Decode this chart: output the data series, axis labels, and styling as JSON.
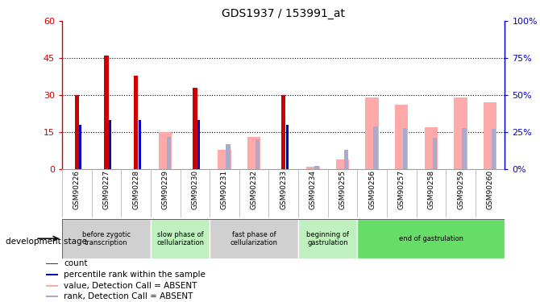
{
  "title": "GDS1937 / 153991_at",
  "samples": [
    "GSM90226",
    "GSM90227",
    "GSM90228",
    "GSM90229",
    "GSM90230",
    "GSM90231",
    "GSM90232",
    "GSM90233",
    "GSM90234",
    "GSM90255",
    "GSM90256",
    "GSM90257",
    "GSM90258",
    "GSM90259",
    "GSM90260"
  ],
  "count_values": [
    30,
    46,
    38,
    null,
    33,
    null,
    null,
    30,
    null,
    null,
    null,
    null,
    null,
    null,
    null
  ],
  "rank_values": [
    30,
    33,
    33,
    null,
    33,
    null,
    null,
    30,
    null,
    null,
    null,
    null,
    null,
    null,
    null
  ],
  "absent_value": [
    null,
    null,
    null,
    15,
    null,
    8,
    13,
    null,
    1,
    4,
    29,
    26,
    17,
    29,
    27
  ],
  "absent_rank": [
    null,
    null,
    null,
    22,
    null,
    17,
    20,
    null,
    2,
    13,
    29,
    28,
    21,
    28,
    27
  ],
  "count_color": "#cc0000",
  "rank_color": "#0000cc",
  "absent_val_color": "#ffaaaa",
  "absent_rank_color": "#aaaacc",
  "ylim": [
    0,
    60
  ],
  "y2lim": [
    0,
    100
  ],
  "yticks": [
    0,
    15,
    30,
    45,
    60
  ],
  "ytick_labels": [
    "0",
    "15",
    "30",
    "45",
    "60"
  ],
  "y2ticks": [
    0,
    25,
    50,
    75,
    100
  ],
  "y2tick_labels": [
    "0%",
    "25%",
    "50%",
    "75%",
    "100%"
  ],
  "grid_lines": [
    15,
    30,
    45
  ],
  "stages": [
    {
      "label": "before zygotic\ntranscription",
      "span": [
        0,
        3
      ],
      "color": "#d0d0d0"
    },
    {
      "label": "slow phase of\ncellularization",
      "span": [
        3,
        5
      ],
      "color": "#c0f0c0"
    },
    {
      "label": "fast phase of\ncellularization",
      "span": [
        5,
        8
      ],
      "color": "#d0d0d0"
    },
    {
      "label": "beginning of\ngastrulation",
      "span": [
        8,
        10
      ],
      "color": "#c0f0c0"
    },
    {
      "label": "end of gastrulation",
      "span": [
        10,
        15
      ],
      "color": "#66dd66"
    }
  ],
  "stage_label": "development stage",
  "legend_items": [
    {
      "label": "count",
      "color": "#cc0000"
    },
    {
      "label": "percentile rank within the sample",
      "color": "#0000cc"
    },
    {
      "label": "value, Detection Call = ABSENT",
      "color": "#ffaaaa"
    },
    {
      "label": "rank, Detection Call = ABSENT",
      "color": "#aaaacc"
    }
  ]
}
